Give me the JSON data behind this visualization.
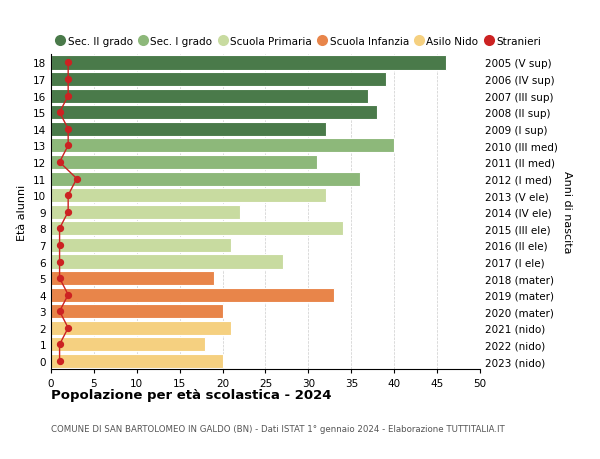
{
  "ages": [
    0,
    1,
    2,
    3,
    4,
    5,
    6,
    7,
    8,
    9,
    10,
    11,
    12,
    13,
    14,
    15,
    16,
    17,
    18
  ],
  "right_labels": [
    "2023 (nido)",
    "2022 (nido)",
    "2021 (nido)",
    "2020 (mater)",
    "2019 (mater)",
    "2018 (mater)",
    "2017 (I ele)",
    "2016 (II ele)",
    "2015 (III ele)",
    "2014 (IV ele)",
    "2013 (V ele)",
    "2012 (I med)",
    "2011 (II med)",
    "2010 (III med)",
    "2009 (I sup)",
    "2008 (II sup)",
    "2007 (III sup)",
    "2006 (IV sup)",
    "2005 (V sup)"
  ],
  "bar_values": [
    20,
    18,
    21,
    20,
    33,
    19,
    27,
    21,
    34,
    22,
    32,
    36,
    31,
    40,
    32,
    38,
    37,
    39,
    46
  ],
  "stranieri": [
    1,
    1,
    2,
    1,
    2,
    1,
    1,
    1,
    1,
    2,
    2,
    3,
    1,
    2,
    2,
    1,
    2,
    2,
    2
  ],
  "bar_colors": [
    "#f5d080",
    "#f5d080",
    "#f5d080",
    "#e8854a",
    "#e8854a",
    "#e8854a",
    "#c8dba0",
    "#c8dba0",
    "#c8dba0",
    "#c8dba0",
    "#c8dba0",
    "#8db87a",
    "#8db87a",
    "#8db87a",
    "#4a7a4a",
    "#4a7a4a",
    "#4a7a4a",
    "#4a7a4a",
    "#4a7a4a"
  ],
  "legend_labels": [
    "Sec. II grado",
    "Sec. I grado",
    "Scuola Primaria",
    "Scuola Infanzia",
    "Asilo Nido",
    "Stranieri"
  ],
  "legend_colors": [
    "#4a7a4a",
    "#8db87a",
    "#c8dba0",
    "#e8854a",
    "#f5d080",
    "#cc2222"
  ],
  "ylabel_left": "Età alunni",
  "ylabel_right": "Anni di nascita",
  "xlim": [
    0,
    50
  ],
  "xticks": [
    0,
    5,
    10,
    15,
    20,
    25,
    30,
    35,
    40,
    45,
    50
  ],
  "title": "Popolazione per età scolastica - 2024",
  "subtitle": "COMUNE DI SAN BARTOLOMEO IN GALDO (BN) - Dati ISTAT 1° gennaio 2024 - Elaborazione TUTTITALIA.IT",
  "bg_color": "#ffffff",
  "grid_color": "#cccccc",
  "stranieri_color": "#cc2222",
  "bar_edge_color": "#ffffff",
  "bar_linewidth": 0.8
}
